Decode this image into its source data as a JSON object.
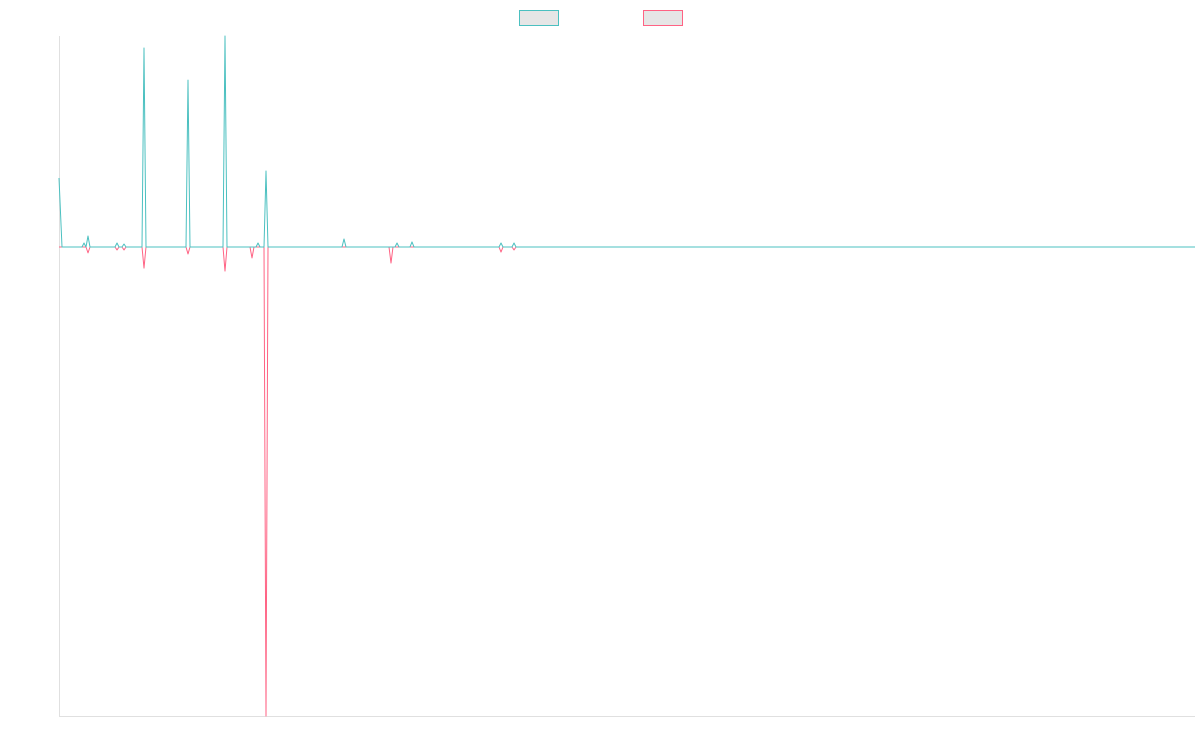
{
  "chart_data": {
    "type": "line",
    "legend": "top",
    "xlim": [
      0,
      1136
    ],
    "ylim": [
      -222.3,
      100
    ],
    "x": [
      0,
      3,
      23,
      25,
      27,
      29,
      31,
      56,
      58,
      60,
      63,
      65,
      67,
      83,
      85,
      87,
      127,
      129,
      131,
      164,
      166,
      168,
      191,
      193,
      195,
      197,
      199,
      201,
      205,
      207,
      209,
      283,
      285,
      287,
      330,
      332,
      334,
      336,
      338,
      340,
      351,
      353,
      355,
      440,
      442,
      444,
      453,
      455,
      457,
      465,
      1136
    ],
    "series": [
      {
        "color": "#4bc0c0",
        "values": [
          32.7,
          0,
          0,
          1.9,
          0,
          5.2,
          0,
          0,
          1.9,
          0,
          0,
          1.4,
          0,
          0,
          94.3,
          0,
          0,
          79.1,
          0,
          0,
          100,
          0,
          0,
          0,
          0,
          0,
          1.9,
          0,
          0,
          36,
          0,
          0,
          3.8,
          0,
          0,
          0,
          0,
          0,
          1.9,
          0,
          0,
          2.4,
          0,
          0,
          1.9,
          0,
          0,
          1.9,
          0,
          0,
          0
        ]
      },
      {
        "color": "#ff6384",
        "values": [
          0,
          0,
          0,
          0,
          0,
          -2.8,
          0,
          0,
          -1.4,
          0,
          0,
          -1.4,
          0,
          0,
          -10,
          0,
          0,
          -3.3,
          0,
          0,
          -11.4,
          0,
          0,
          -5.2,
          0,
          0,
          0,
          0,
          0,
          -222.3,
          0,
          0,
          0,
          0,
          0,
          -7.6,
          0,
          0,
          0,
          0,
          0,
          0,
          0,
          0,
          -2.4,
          0,
          0,
          -1.4,
          0,
          0,
          0
        ]
      }
    ]
  }
}
